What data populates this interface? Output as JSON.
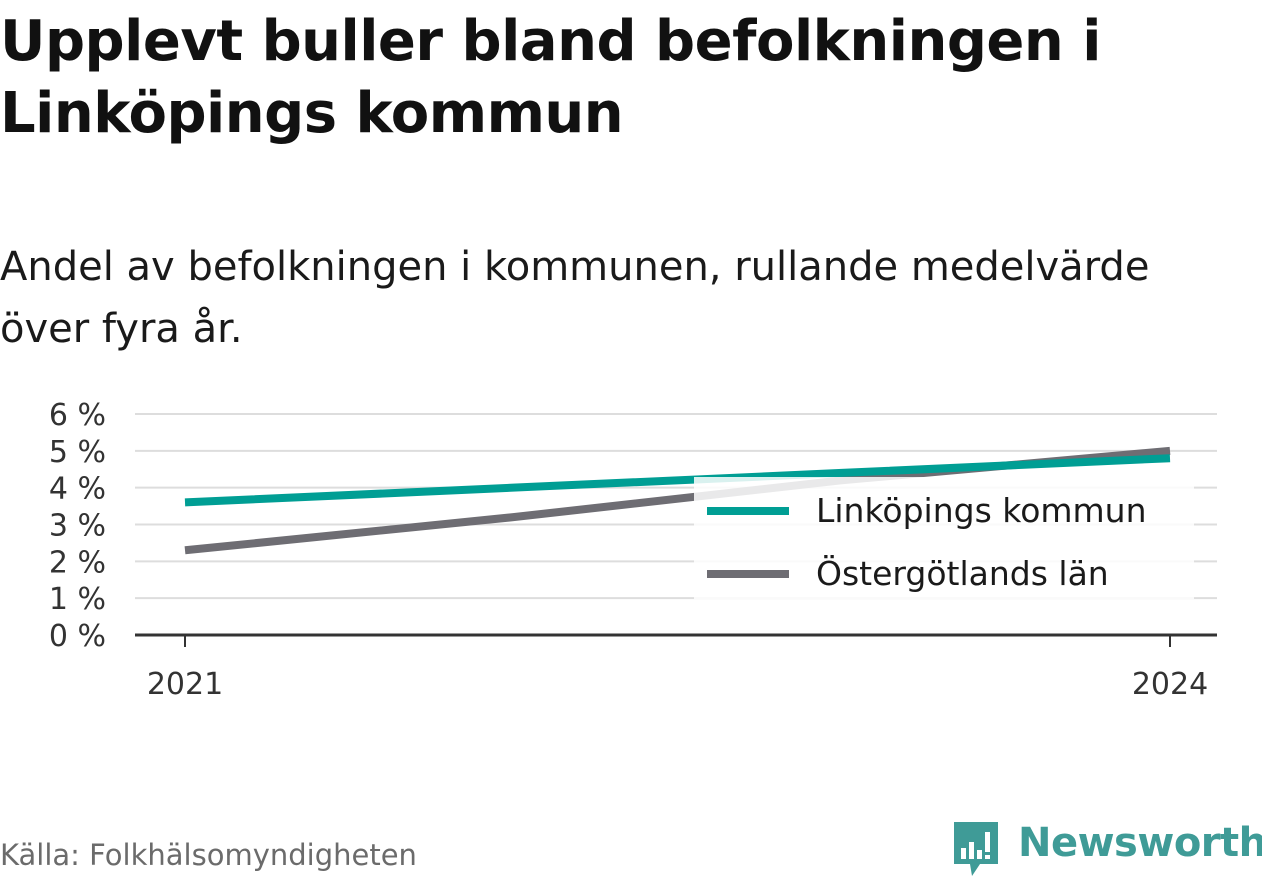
{
  "title": "Upplevt buller bland befolkningen i Linköpings kommun",
  "subtitle": "Andel av befolkningen i kommunen, rullande medelvärde över fyra år.",
  "source": "Källa: Folkhälsomyndigheten",
  "brand": {
    "name": "Newsworthy",
    "color": "#3f9b97",
    "icon": "newsworthy-logo-icon"
  },
  "chart_data": {
    "type": "line",
    "x": [
      2021,
      2022,
      2023,
      2024
    ],
    "x_tick_labels": [
      "2021",
      "2024"
    ],
    "y_ticks": [
      0,
      1,
      2,
      3,
      4,
      5,
      6
    ],
    "y_tick_labels": [
      "0 %",
      "1 %",
      "2 %",
      "3 %",
      "4 %",
      "5 %",
      "6 %"
    ],
    "ylim": [
      0,
      6
    ],
    "grid": true,
    "legend_position": "center-right",
    "series": [
      {
        "name": "Linköpings kommun",
        "color": "#009e94",
        "values": [
          3.6,
          4.0,
          4.4,
          4.8
        ]
      },
      {
        "name": "Östergötlands län",
        "color": "#6e6d73",
        "values": [
          2.3,
          3.2,
          4.2,
          5.0
        ]
      }
    ]
  }
}
